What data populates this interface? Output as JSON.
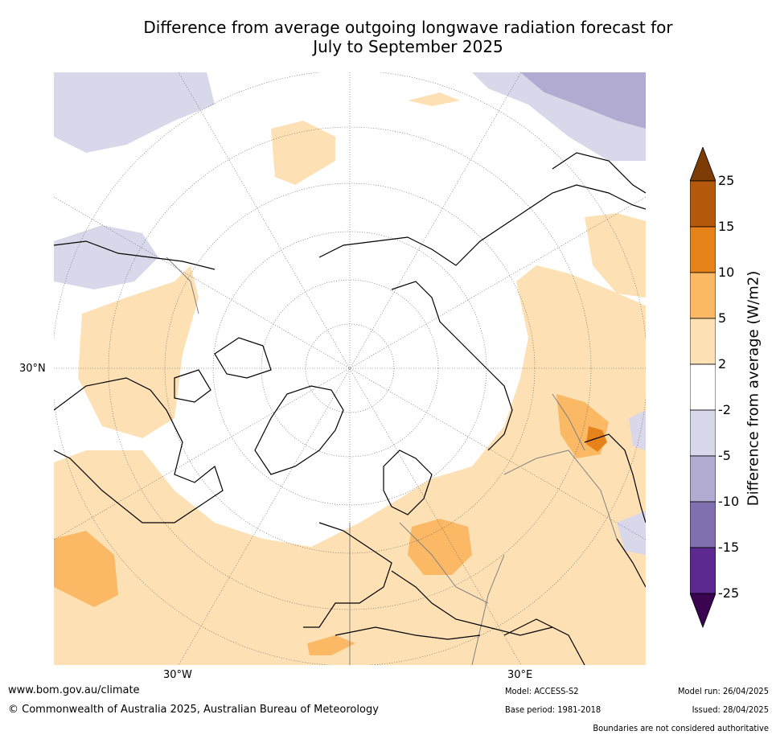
{
  "title": {
    "line1": "Difference from average outgoing longwave radiation forecast for",
    "line2": "July to September 2025"
  },
  "map": {
    "projection": "north-polar-stereographic",
    "lat_label": "30°N",
    "lon_labels": {
      "west": "30°W",
      "east": "30°E"
    },
    "colors": {
      "land_outline": "#000000",
      "border": "#808080",
      "graticule": "#555555",
      "band_2_5": "#fde1b4",
      "band_5_10": "#fbb865",
      "band_10_15": "#e5831a",
      "band_15_25": "#b55a0c",
      "band_gt25": "#7d3c05",
      "band_m2_m5": "#d8d8ea",
      "band_m5_m10": "#b1abd2",
      "band_m10_m15": "#8170b0",
      "band_m15_m25": "#5b2990",
      "band_lt_m25": "#3b0450"
    }
  },
  "legend": {
    "label": "Difference from average (W/m2)",
    "ticks": [
      "25",
      "15",
      "10",
      "5",
      "2",
      "-2",
      "-5",
      "-10",
      "-15",
      "-25"
    ],
    "colors_top_to_bottom": [
      "#7d3c05",
      "#b55a0c",
      "#e5831a",
      "#fbb865",
      "#fde1b4",
      "#ffffff",
      "#d8d8ea",
      "#b1abd2",
      "#8170b0",
      "#5b2990",
      "#3b0450"
    ]
  },
  "footer": {
    "website": "www.bom.gov.au/climate",
    "copyright": "© Commonwealth of Australia 2025, Australian Bureau of Meteorology",
    "model": "Model: ACCESS-S2",
    "base_period": "Base period: 1981-2018",
    "model_run": "Model run: 26/04/2025",
    "issued": "Issued: 28/04/2025",
    "disclaimer": "Boundaries are not considered authoritative"
  }
}
